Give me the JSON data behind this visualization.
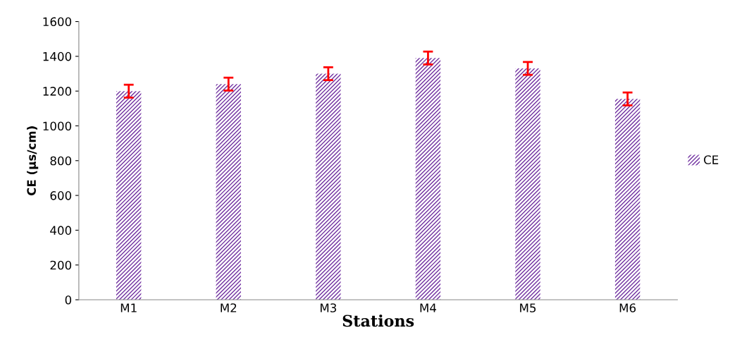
{
  "chart_data": {
    "type": "bar",
    "xlabel": "Stations",
    "ylabel": "CE (µs/cm)",
    "categories": [
      "M1",
      "M2",
      "M3",
      "M4",
      "M5",
      "M6"
    ],
    "series": [
      {
        "name": "CE",
        "color": "#7030a0",
        "values": [
          1200,
          1240,
          1300,
          1390,
          1330,
          1155
        ],
        "errors": [
          37,
          37,
          37,
          37,
          37,
          37
        ]
      }
    ],
    "ylim": [
      0,
      1600
    ],
    "yticks": [
      0,
      200,
      400,
      600,
      800,
      1000,
      1200,
      1400,
      1600
    ],
    "grid": false,
    "legend": "right"
  }
}
